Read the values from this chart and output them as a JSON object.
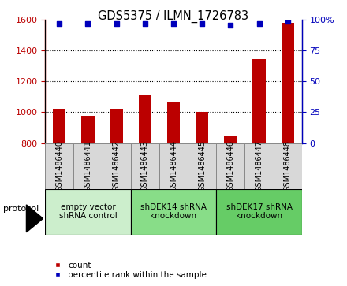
{
  "title": "GDS5375 / ILMN_1726783",
  "samples": [
    "GSM1486440",
    "GSM1486441",
    "GSM1486442",
    "GSM1486443",
    "GSM1486444",
    "GSM1486445",
    "GSM1486446",
    "GSM1486447",
    "GSM1486448"
  ],
  "counts": [
    1025,
    975,
    1025,
    1115,
    1065,
    1000,
    845,
    1345,
    1580
  ],
  "percentile_ranks": [
    97,
    97,
    97,
    97,
    97,
    97,
    96,
    97,
    99
  ],
  "ylim_left": [
    800,
    1600
  ],
  "ylim_right": [
    0,
    100
  ],
  "yticks_left": [
    800,
    1000,
    1200,
    1400,
    1600
  ],
  "yticks_right": [
    0,
    25,
    50,
    75,
    100
  ],
  "bar_color": "#bb0000",
  "dot_color": "#0000bb",
  "groups": [
    {
      "label": "empty vector\nshRNA control",
      "start": 0,
      "end": 3,
      "color": "#cceecc"
    },
    {
      "label": "shDEK14 shRNA\nknockdown",
      "start": 3,
      "end": 6,
      "color": "#88dd88"
    },
    {
      "label": "shDEK17 shRNA\nknockdown",
      "start": 6,
      "end": 9,
      "color": "#66cc66"
    }
  ],
  "protocol_label": "protocol",
  "legend_count_label": "count",
  "legend_percentile_label": "percentile rank within the sample",
  "sample_box_color": "#d8d8d8",
  "sample_box_edge": "#888888",
  "grid_yticks": [
    1000,
    1200,
    1400
  ],
  "bar_width": 0.45
}
